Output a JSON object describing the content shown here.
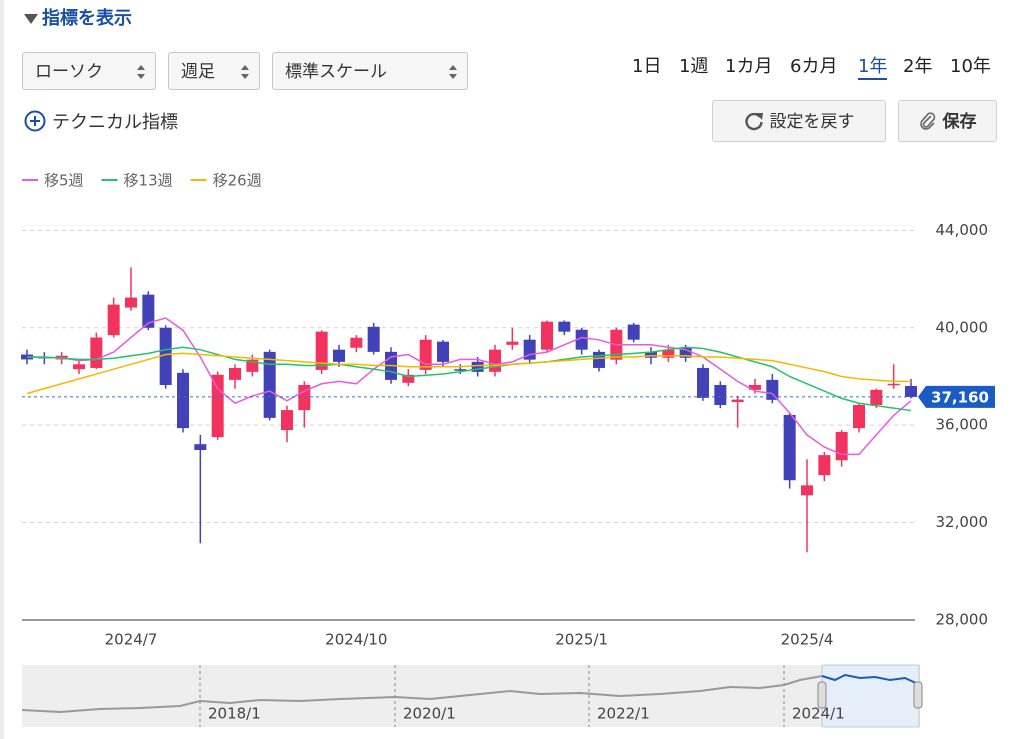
{
  "header": {
    "title": "指標を表示"
  },
  "selects": [
    "ローソク",
    "週足",
    "標準スケール"
  ],
  "periods": {
    "items": [
      "1日",
      "1週",
      "1カ月",
      "6カ月",
      "1年",
      "2年",
      "10年"
    ],
    "selected": 4
  },
  "buttons": {
    "technical": "テクニカル指標",
    "reset": "設定を戻す",
    "save": "保存"
  },
  "chart_data": {
    "type": "candlestick",
    "categories": [
      null,
      null,
      null,
      null,
      null,
      null,
      "2024/7",
      null,
      null,
      null,
      null,
      null,
      null,
      null,
      null,
      null,
      null,
      null,
      null,
      "2024/10",
      null,
      null,
      null,
      null,
      null,
      null,
      null,
      null,
      null,
      null,
      null,
      null,
      "2025/1",
      null,
      null,
      null,
      null,
      null,
      null,
      null,
      null,
      null,
      null,
      null,
      null,
      "2025/4",
      null,
      null,
      null,
      null,
      null,
      null
    ],
    "open": [
      38900,
      38800,
      38700,
      38300,
      38350,
      39700,
      40830,
      41360,
      40000,
      38150,
      35220,
      35510,
      37860,
      38190,
      39010,
      35800,
      36620,
      38270,
      39100,
      39180,
      40040,
      39010,
      37740,
      38270,
      39430,
      38300,
      38600,
      38190,
      39300,
      39510,
      39100,
      40250,
      39920,
      39010,
      38690,
      40130,
      39010,
      38770,
      39180,
      38350,
      37650,
      36950,
      37450,
      37860,
      36420,
      33120,
      33950,
      34560,
      35880,
      36830,
      37650,
      37610
    ],
    "high": [
      39100,
      39000,
      39000,
      38700,
      39800,
      41240,
      42480,
      41500,
      40100,
      38300,
      35600,
      38200,
      38500,
      38900,
      39100,
      36800,
      37800,
      39900,
      39300,
      39700,
      40200,
      39200,
      38300,
      39700,
      39500,
      38500,
      38800,
      39300,
      40000,
      39700,
      40300,
      40300,
      40000,
      39100,
      40000,
      40200,
      39200,
      39300,
      39300,
      38500,
      37800,
      37200,
      37900,
      38100,
      36500,
      34600,
      34900,
      35800,
      36900,
      37500,
      38500,
      37900
    ],
    "low": [
      38500,
      38500,
      38500,
      38100,
      38300,
      39600,
      40700,
      39900,
      37500,
      35700,
      31150,
      35400,
      37500,
      38000,
      36200,
      35300,
      35900,
      38100,
      38400,
      39000,
      38900,
      37700,
      37600,
      38100,
      38400,
      38100,
      38000,
      38000,
      39100,
      38500,
      39000,
      39700,
      38900,
      38200,
      38500,
      39400,
      38500,
      38600,
      38600,
      37000,
      36700,
      35900,
      37300,
      36900,
      33400,
      30780,
      33700,
      34300,
      35700,
      36700,
      37500,
      37100
    ],
    "close": [
      38700,
      38750,
      38850,
      38500,
      39600,
      40950,
      41240,
      40000,
      37650,
      35880,
      34980,
      38070,
      38350,
      38690,
      36300,
      36620,
      37650,
      39840,
      38600,
      39590,
      39010,
      37860,
      38070,
      39510,
      38600,
      38250,
      38190,
      39100,
      39430,
      38690,
      40250,
      39840,
      39100,
      38350,
      39920,
      39510,
      38770,
      39100,
      38770,
      37120,
      36830,
      37050,
      37650,
      37040,
      33740,
      33530,
      34770,
      35720,
      36830,
      37450,
      37700,
      37160
    ],
    "up_color": "#f2335e",
    "down_color": "#4242b8",
    "series": [
      {
        "name": "移5週",
        "color": "#e85ae0",
        "values": [
          38800,
          38780,
          38770,
          38650,
          38700,
          39000,
          39600,
          40200,
          40400,
          39900,
          38800,
          37500,
          36900,
          37200,
          37400,
          37000,
          37400,
          37700,
          37800,
          37700,
          38300,
          38800,
          38900,
          38500,
          38500,
          38700,
          38700,
          38500,
          38600,
          38900,
          39000,
          39300,
          39600,
          39500,
          39300,
          39300,
          39300,
          39200,
          39100,
          38800,
          38300,
          37800,
          37400,
          37300,
          36500,
          35600,
          35100,
          34800,
          34800,
          35600,
          36400,
          37000
        ]
      },
      {
        "name": "移13週",
        "color": "#22c46a",
        "values": [
          38800,
          38800,
          38750,
          38700,
          38700,
          38750,
          38850,
          38950,
          39100,
          39200,
          39100,
          38900,
          38700,
          38600,
          38500,
          38500,
          38450,
          38450,
          38500,
          38400,
          38300,
          38200,
          38000,
          38050,
          38100,
          38200,
          38300,
          38400,
          38500,
          38550,
          38600,
          38700,
          38800,
          38850,
          38900,
          38950,
          39000,
          39100,
          39200,
          39150,
          39000,
          38800,
          38600,
          38400,
          38000,
          37700,
          37400,
          37100,
          36900,
          36800,
          36700,
          36600
        ]
      },
      {
        "name": "移26週",
        "color": "#f5b800",
        "values": [
          37300,
          37500,
          37700,
          37900,
          38100,
          38300,
          38500,
          38700,
          38900,
          38950,
          38900,
          38850,
          38800,
          38750,
          38700,
          38650,
          38600,
          38550,
          38500,
          38500,
          38450,
          38450,
          38400,
          38400,
          38400,
          38400,
          38450,
          38450,
          38500,
          38550,
          38600,
          38650,
          38700,
          38750,
          38800,
          38800,
          38850,
          38850,
          38850,
          38800,
          38800,
          38750,
          38700,
          38650,
          38500,
          38350,
          38200,
          38000,
          37900,
          37850,
          37800,
          37800
        ]
      }
    ],
    "ylim": [
      28000,
      45000
    ],
    "yticks": [
      {
        "value": 28000,
        "label": "28,000"
      },
      {
        "value": 32000,
        "label": "32,000"
      },
      {
        "value": 36000,
        "label": "36,000"
      },
      {
        "value": 40000,
        "label": "40,000"
      },
      {
        "value": 44000,
        "label": "44,000"
      }
    ],
    "grid": true,
    "last_price": {
      "value": 37160,
      "label": "37,160"
    }
  },
  "navigator": {
    "labels": [
      "2018/1",
      "2020/1",
      "2022/1",
      "2024/1"
    ]
  }
}
